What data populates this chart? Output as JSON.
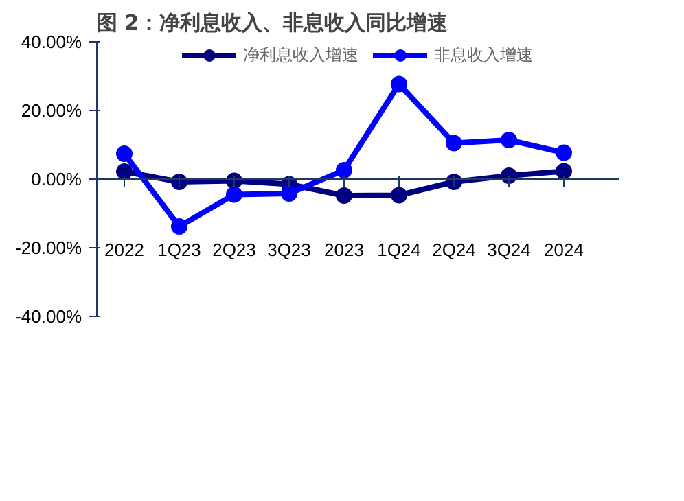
{
  "chart_data": {
    "type": "line",
    "title": "图 2：净利息收入、非息收入同比增速",
    "categories": [
      "2022",
      "1Q23",
      "2Q23",
      "3Q23",
      "2023",
      "1Q24",
      "2Q24",
      "3Q24",
      "2024"
    ],
    "series": [
      {
        "name": "净利息收入增速",
        "color": "#000080",
        "values": [
          2.2,
          -0.8,
          -0.5,
          -1.5,
          -4.8,
          -4.7,
          -0.8,
          1.0,
          2.3
        ]
      },
      {
        "name": "非息收入增速",
        "color": "#0000ff",
        "values": [
          7.4,
          -13.8,
          -4.5,
          -4.2,
          2.6,
          27.7,
          10.5,
          11.4,
          7.7
        ]
      }
    ],
    "ylim": [
      -40,
      40
    ],
    "yticks": [
      {
        "value": -40,
        "label": "-40.00%"
      },
      {
        "value": -20,
        "label": "-20.00%"
      },
      {
        "value": 0,
        "label": "0.00%"
      },
      {
        "value": 20,
        "label": "20.00%"
      },
      {
        "value": 40,
        "label": "40.00%"
      }
    ],
    "ref_lines": [
      {
        "axis": "y",
        "value": 0,
        "color": "#1f3864"
      }
    ],
    "grid": false,
    "legend": "top",
    "marker": "circle",
    "line_style": "solid"
  }
}
